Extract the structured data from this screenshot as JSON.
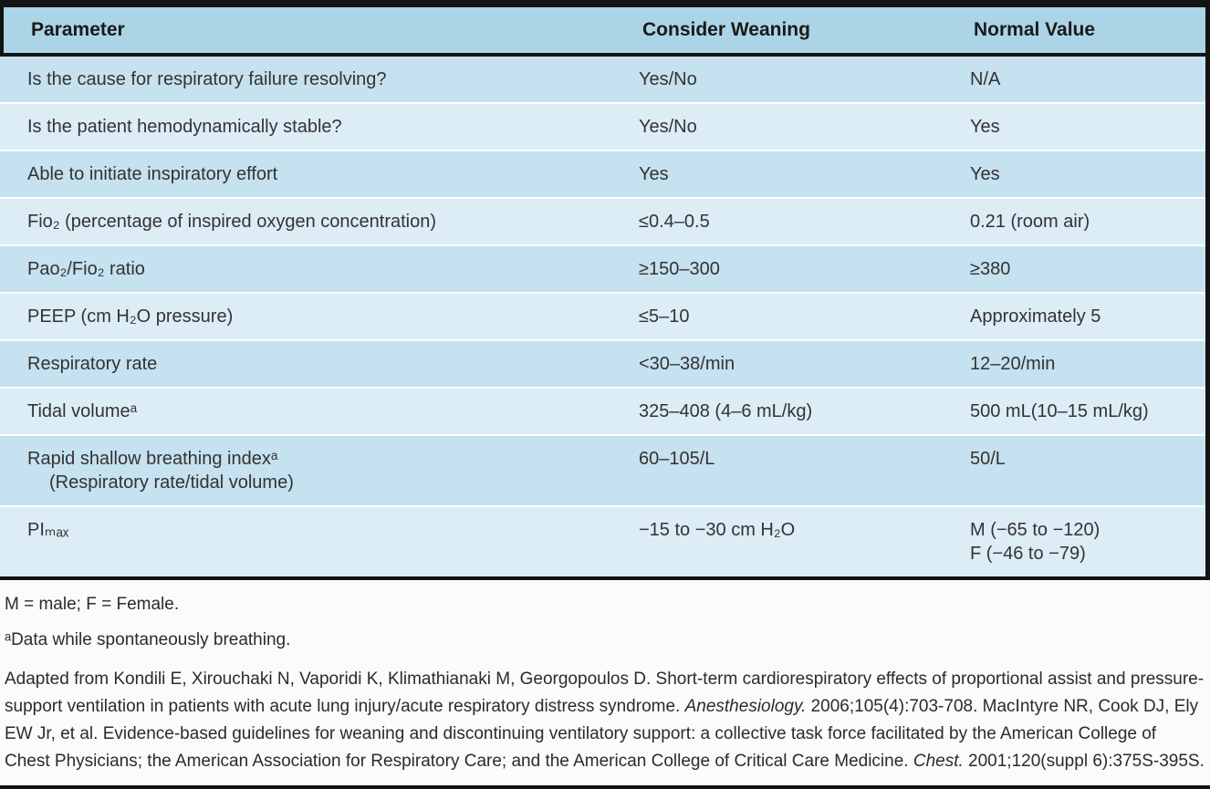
{
  "table": {
    "headers": {
      "param": "Parameter",
      "weaning": "Consider Weaning",
      "normal": "Normal Value"
    },
    "rows": [
      {
        "param": "Is the cause for respiratory failure resolving?",
        "weaning": "Yes/No",
        "normal": "N/A"
      },
      {
        "param": "Is the patient hemodynamically stable?",
        "weaning": "Yes/No",
        "normal": "Yes"
      },
      {
        "param": "Able to initiate inspiratory effort",
        "weaning": "Yes",
        "normal": "Yes"
      },
      {
        "param": "Fio₂ (percentage of inspired oxygen concentration)",
        "weaning": "≤0.4–0.5",
        "normal": "0.21 (room air)"
      },
      {
        "param": "Pao₂/Fio₂ ratio",
        "weaning": "≥150–300",
        "normal": "≥380"
      },
      {
        "param": "PEEP (cm H₂O pressure)",
        "weaning": "≤5–10",
        "normal": "Approximately 5"
      },
      {
        "param": "Respiratory rate",
        "weaning": "<30–38/min",
        "normal": "12–20/min"
      },
      {
        "param": "Tidal volumeᵃ",
        "weaning": "325–408 (4–6 mL/kg)",
        "normal": "500 mL(10–15 mL/kg)"
      },
      {
        "param": "Rapid shallow breathing indexᵃ",
        "param2": "(Respiratory rate/tidal volume)",
        "weaning": "60–105/L",
        "normal": "50/L"
      },
      {
        "param": "PIₘₐₓ",
        "weaning": "−15 to −30 cm H₂O",
        "normal": "M (−65 to −120)",
        "normal2": "F (−46 to −79)"
      }
    ]
  },
  "footnotes": {
    "legend": "M = male; F = Female.",
    "note_a": "ᵃData while spontaneously breathing.",
    "citation": {
      "part1": "Adapted from Kondili E, Xirouchaki N, Vaporidi K, Klimathianaki M, Georgopoulos D. Short-term cardiorespiratory effects of proportional assist and pressure-support ventilation in patients with acute lung injury/acute respiratory distress syndrome. ",
      "italic1": "Anesthesiology.",
      "part2": " 2006;105(4):703-708.  MacIntyre NR, Cook DJ, Ely EW Jr, et al. Evidence-based guidelines for weaning and discontinuing ventilatory support: a collective task force facilitated by the American College of Chest Physicians; the American Association for Respiratory Care; and the American College of Critical Care Medicine. ",
      "italic2": "Chest.",
      "part3": " 2001;120(suppl 6):375S-395S."
    }
  },
  "colors": {
    "header_bg": "#abd4e7",
    "row_dark": "#c6e1ef",
    "row_light": "#dcedf6",
    "rule_black": "#131313"
  }
}
